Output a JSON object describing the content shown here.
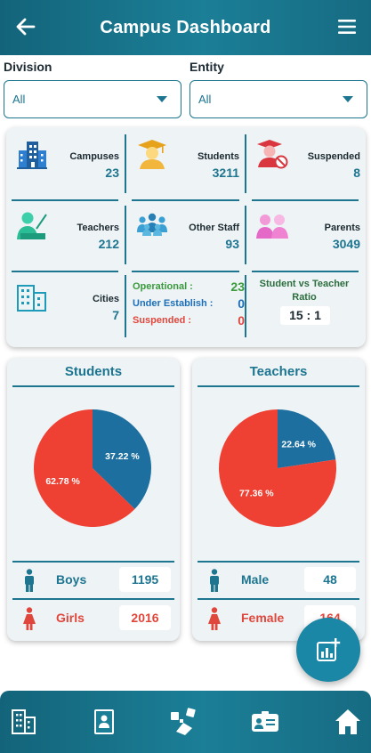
{
  "header": {
    "title": "Campus Dashboard",
    "back_icon": "arrow-left-icon",
    "menu_icon": "hamburger-menu-icon"
  },
  "filters": {
    "division": {
      "label": "Division",
      "value": "All"
    },
    "entity": {
      "label": "Entity",
      "value": "All"
    }
  },
  "stats": {
    "campuses": {
      "label": "Campuses",
      "value": "23",
      "icon": "building-icon"
    },
    "students": {
      "label": "Students",
      "value": "3211",
      "icon": "graduate-icon"
    },
    "suspended": {
      "label": "Suspended",
      "value": "8",
      "icon": "suspended-student-icon"
    },
    "teachers": {
      "label": "Teachers",
      "value": "212",
      "icon": "teacher-icon"
    },
    "other_staff": {
      "label": "Other Staff",
      "value": "93",
      "icon": "staff-group-icon"
    },
    "parents": {
      "label": "Parents",
      "value": "3049",
      "icon": "parents-icon"
    },
    "cities": {
      "label": "Cities",
      "value": "7",
      "icon": "city-icon"
    },
    "status": {
      "operational": {
        "label": "Operational :",
        "value": "23",
        "color": "#3a9a3c"
      },
      "under_establish": {
        "label": "Under Establish :",
        "value": "0",
        "color": "#1d6fb8"
      },
      "suspended": {
        "label": "Suspended :",
        "value": "0",
        "color": "#e0473c"
      }
    },
    "ratio": {
      "label": "Student vs Teacher Ratio",
      "value": "15 : 1"
    }
  },
  "students_card": {
    "title": "Students",
    "boys": {
      "label": "Boys",
      "value": "1195"
    },
    "girls": {
      "label": "Girls",
      "value": "2016"
    }
  },
  "teachers_card": {
    "title": "Teachers",
    "male": {
      "label": "Male",
      "value": "48"
    },
    "female": {
      "label": "Female",
      "value": "164"
    }
  },
  "chart_data": [
    {
      "type": "pie",
      "title": "Students",
      "categories": [
        "Boys",
        "Girls"
      ],
      "values": [
        37.22,
        62.78
      ],
      "labels": [
        "37.22 %",
        "62.78 %"
      ],
      "colors": [
        "#1d6fa0",
        "#ee4133"
      ]
    },
    {
      "type": "pie",
      "title": "Teachers",
      "categories": [
        "Male",
        "Female"
      ],
      "values": [
        22.64,
        77.36
      ],
      "labels": [
        "22.64 %",
        "77.36 %"
      ],
      "colors": [
        "#1d6fa0",
        "#ee4133"
      ]
    }
  ],
  "fab": {
    "icon": "add-report-icon"
  },
  "bottom_nav": {
    "items": [
      {
        "icon": "buildings-icon"
      },
      {
        "icon": "student-id-book-icon"
      },
      {
        "icon": "announcement-icon"
      },
      {
        "icon": "id-card-icon"
      },
      {
        "icon": "home-icon"
      }
    ]
  },
  "colors": {
    "primary": "#1d7590",
    "boys": "#1d7590",
    "girls": "#e0473c"
  }
}
